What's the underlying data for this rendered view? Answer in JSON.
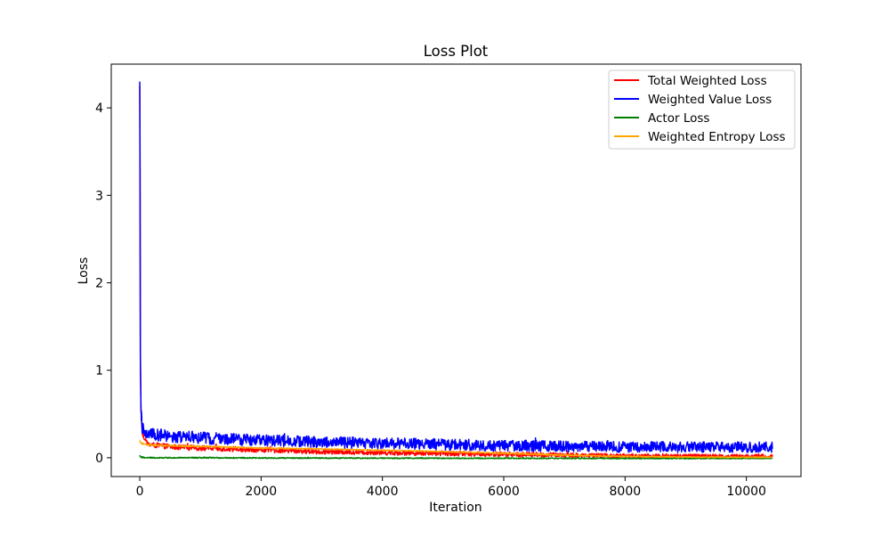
{
  "chart_data": {
    "type": "line",
    "title": "Loss Plot",
    "xlabel": "Iteration",
    "ylabel": "Loss",
    "xlim": [
      -470,
      10900
    ],
    "ylim": [
      -0.215,
      4.5
    ],
    "xticks": [
      0,
      2000,
      4000,
      6000,
      8000,
      10000
    ],
    "yticks": [
      0,
      1,
      2,
      3,
      4
    ],
    "grid": false,
    "legend_position": "top-right",
    "x_range": [
      0,
      10430
    ],
    "series": [
      {
        "name": "Total Weighted Loss",
        "color": "#ff0000",
        "x": [
          0,
          5,
          10,
          20,
          40,
          80,
          150,
          300,
          600,
          1000,
          1500,
          2000,
          2500,
          3000,
          3500,
          4000,
          4500,
          5000,
          5500,
          6000,
          6500,
          7000,
          7500,
          8000,
          8500,
          9000,
          9500,
          10000,
          10430
        ],
        "y": [
          4.25,
          3.4,
          1.2,
          0.55,
          0.3,
          0.2,
          0.15,
          0.14,
          0.12,
          0.11,
          0.1,
          0.09,
          0.08,
          0.07,
          0.065,
          0.06,
          0.055,
          0.05,
          0.045,
          0.04,
          0.035,
          0.03,
          0.025,
          0.02,
          0.02,
          0.018,
          0.015,
          0.015,
          0.015
        ],
        "noise_amplitude": 0.03
      },
      {
        "name": "Weighted Value Loss",
        "color": "#0000ff",
        "x": [
          0,
          5,
          10,
          20,
          40,
          80,
          150,
          300,
          600,
          1000,
          1500,
          2000,
          2500,
          3000,
          3500,
          4000,
          4500,
          5000,
          5500,
          6000,
          6500,
          7000,
          7500,
          8000,
          8500,
          9000,
          9500,
          10000,
          10430
        ],
        "y": [
          4.3,
          3.0,
          1.1,
          0.55,
          0.35,
          0.3,
          0.28,
          0.26,
          0.24,
          0.23,
          0.21,
          0.2,
          0.19,
          0.18,
          0.17,
          0.165,
          0.16,
          0.15,
          0.145,
          0.14,
          0.135,
          0.13,
          0.13,
          0.125,
          0.125,
          0.12,
          0.12,
          0.12,
          0.12
        ],
        "noise_amplitude": 0.07
      },
      {
        "name": "Actor Loss",
        "color": "#008000",
        "x": [
          0,
          5,
          10,
          40,
          100,
          1000,
          2000,
          4000,
          6000,
          8000,
          10000,
          10430
        ],
        "y": [
          0.03,
          0.02,
          0.01,
          0.005,
          0.0,
          0.0,
          -0.003,
          -0.005,
          -0.006,
          -0.008,
          -0.008,
          -0.008
        ],
        "noise_amplitude": 0.006
      },
      {
        "name": "Weighted Entropy Loss",
        "color": "#ffa500",
        "x": [
          0,
          10,
          20,
          40,
          100,
          300,
          1000,
          2000,
          3000,
          4000,
          5000,
          6000,
          7000,
          8000,
          9000,
          10000,
          10430
        ],
        "y": [
          0.2,
          0.18,
          0.17,
          0.16,
          0.15,
          0.14,
          0.13,
          0.11,
          0.1,
          0.085,
          0.07,
          0.05,
          0.03,
          0.015,
          0.008,
          0.005,
          0.005
        ],
        "noise_amplitude": 0.006
      }
    ]
  }
}
